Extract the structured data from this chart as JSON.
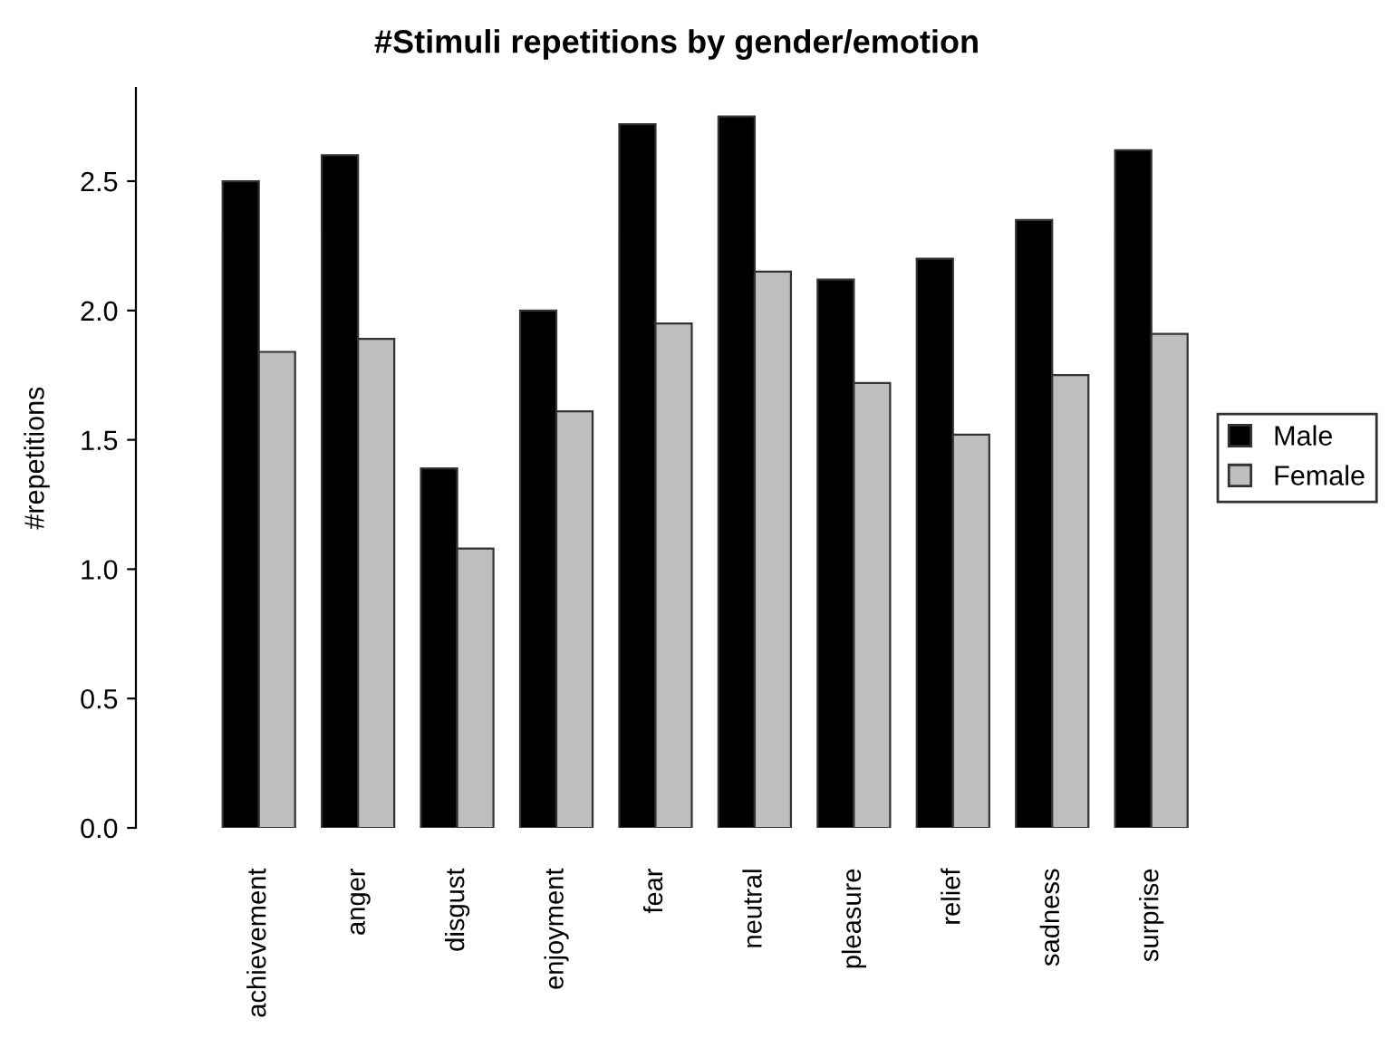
{
  "chart_data": {
    "type": "bar",
    "title": "#Stimuli repetitions by gender/emotion",
    "ylabel": "#repetitions",
    "categories": [
      "achievement",
      "anger",
      "disgust",
      "enjoyment",
      "fear",
      "neutral",
      "pleasure",
      "relief",
      "sadness",
      "surprise"
    ],
    "series": [
      {
        "name": "Male",
        "color": "#000000",
        "values": [
          2.5,
          2.6,
          1.39,
          2.0,
          2.72,
          2.75,
          2.12,
          2.2,
          2.35,
          2.62
        ]
      },
      {
        "name": "Female",
        "color": "#bebebe",
        "values": [
          1.84,
          1.89,
          1.08,
          1.61,
          1.95,
          2.15,
          1.72,
          1.52,
          1.75,
          1.91
        ]
      }
    ],
    "ylim": [
      0,
      2.86
    ],
    "yticks": [
      {
        "value": 0,
        "label": "0.0"
      },
      0.5,
      {
        "value": 1,
        "label": "1.0"
      },
      1.5,
      {
        "value": 2,
        "label": "2.0"
      },
      2.5
    ],
    "grid": false,
    "legend": "right"
  }
}
